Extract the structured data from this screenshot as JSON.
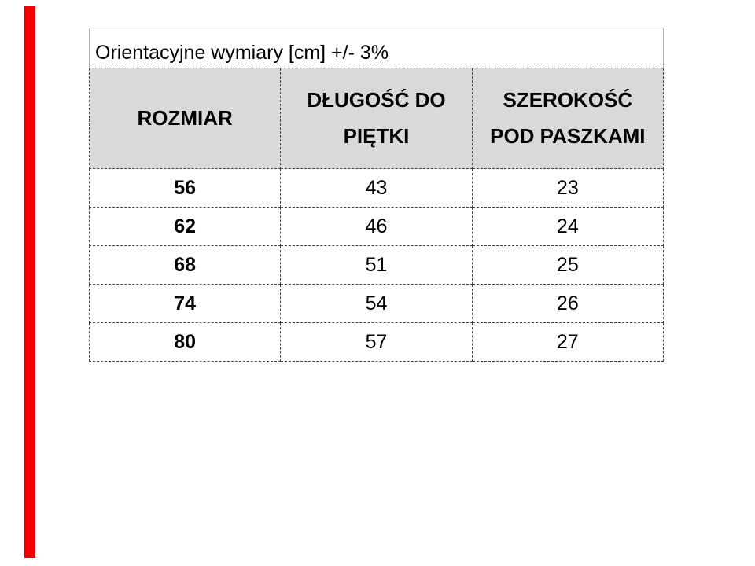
{
  "colors": {
    "red_strip": "#f40000",
    "header_bg": "#d9d9d9",
    "dashed_border": "#444444",
    "outer_border": "#b3b3b3",
    "text": "#000000"
  },
  "table": {
    "title": "Orientacyjne wymiary [cm] +/- 3%",
    "columns": [
      "ROZMIAR",
      "DŁUGOŚĆ DO PIĘTKI",
      "SZEROKOŚĆ POD PASZKAMI"
    ],
    "rows": [
      {
        "size": "56",
        "length": "43",
        "width": "23"
      },
      {
        "size": "62",
        "length": "46",
        "width": "24"
      },
      {
        "size": "68",
        "length": "51",
        "width": "25"
      },
      {
        "size": "74",
        "length": "54",
        "width": "26"
      },
      {
        "size": "80",
        "length": "57",
        "width": "27"
      }
    ]
  }
}
